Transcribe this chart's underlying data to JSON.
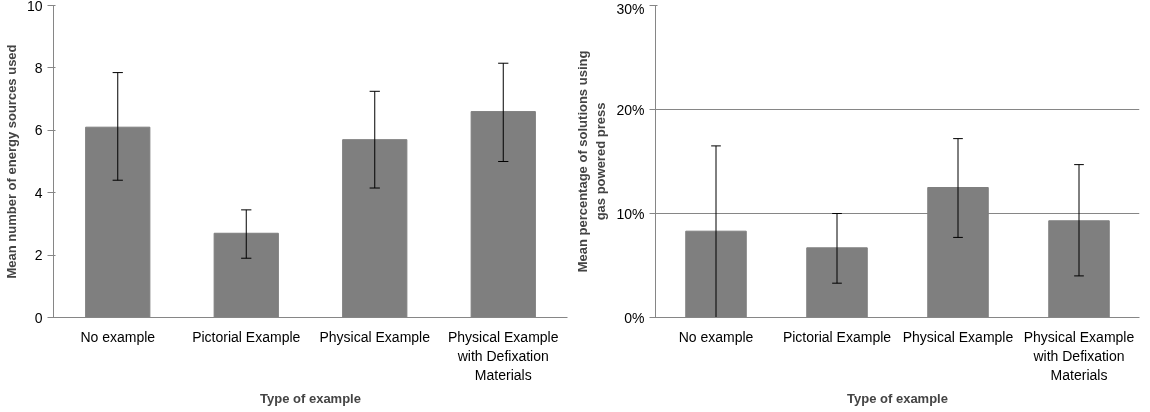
{
  "chart_data": [
    {
      "type": "bar",
      "xlabel": "Type of example",
      "ylabel": "Mean number of energy sources used",
      "categories": [
        "No example",
        "Pictorial Example",
        "Physical Example",
        "Physical Example with Defixation Materials"
      ],
      "values": [
        6.1,
        2.7,
        5.7,
        6.6
      ],
      "color": "#7f7f7f",
      "errors": [
        [
          4.4,
          7.85
        ],
        [
          1.9,
          3.45
        ],
        [
          4.15,
          7.25
        ],
        [
          5.0,
          8.15
        ]
      ],
      "ylim": [
        0,
        10
      ],
      "yticks": [
        0,
        2,
        4,
        6,
        8,
        10
      ],
      "grid": false
    },
    {
      "type": "bar",
      "xlabel": "Type of example",
      "ylabel": "Mean percentage of solutions using gas powered press",
      "categories": [
        "No example",
        "Pictorial Example",
        "Physical Example",
        "Physical Example with Defixation Materials"
      ],
      "values": [
        8.3,
        6.7,
        12.5,
        9.3
      ],
      "color": "#7f7f7f",
      "errors": [
        [
          0,
          16.5
        ],
        [
          3.3,
          10
        ],
        [
          7.7,
          17.2
        ],
        [
          4.0,
          14.7
        ]
      ],
      "ylim": [
        0,
        30
      ],
      "yticks": [
        {
          "value": 0,
          "label": "0%"
        },
        {
          "value": 10,
          "label": "10%"
        },
        {
          "value": 20,
          "label": "20%"
        },
        {
          "value": 30,
          "label": "30%"
        }
      ],
      "grid": "y"
    }
  ]
}
